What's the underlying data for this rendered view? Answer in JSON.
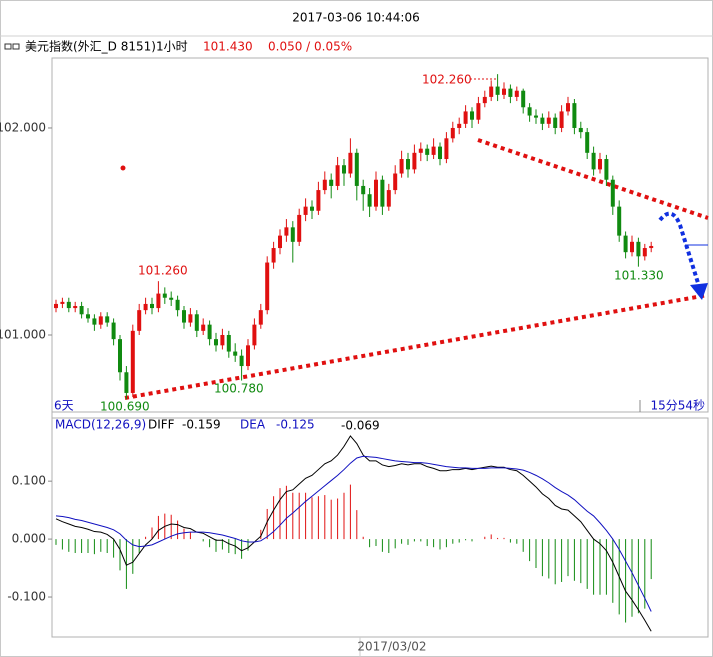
{
  "header": {
    "title": "2017-03-06 10:44:06",
    "instrument": "美元指数(外汇_D 8151)1小时",
    "last": "101.430",
    "change": "0.050 / 0.05%"
  },
  "chart_data": [
    {
      "type": "candlestick",
      "up_color": "#e01010",
      "down_color": "#108a10",
      "ylim": [
        100.628,
        102.338
      ],
      "yticks": [
        {
          "value": 101,
          "label": "101.000"
        },
        {
          "value": 102,
          "label": "102.000"
        }
      ],
      "price_labels": [
        "102.260",
        "101.260",
        "100.780",
        "100.690",
        "101.330"
      ],
      "left_note": "6天",
      "right_note": "15分54秒",
      "date_label": "2017/03/02",
      "ohlc": [
        [
          101.13,
          101.17,
          101.11,
          101.15
        ],
        [
          101.15,
          101.18,
          101.13,
          101.16
        ],
        [
          101.16,
          101.18,
          101.11,
          101.13
        ],
        [
          101.13,
          101.16,
          101.11,
          101.14
        ],
        [
          101.14,
          101.16,
          101.08,
          101.1
        ],
        [
          101.1,
          101.13,
          101.06,
          101.08
        ],
        [
          101.08,
          101.1,
          101.02,
          101.05
        ],
        [
          101.05,
          101.11,
          101.03,
          101.09
        ],
        [
          101.09,
          101.11,
          101.04,
          101.06
        ],
        [
          101.06,
          101.08,
          100.95,
          100.98
        ],
        [
          100.98,
          101.0,
          100.78,
          100.82
        ],
        [
          100.82,
          100.85,
          100.69,
          100.72
        ],
        [
          100.72,
          101.05,
          100.7,
          101.02
        ],
        [
          101.02,
          101.15,
          101.0,
          101.12
        ],
        [
          101.12,
          101.18,
          101.1,
          101.15
        ],
        [
          101.15,
          101.18,
          101.1,
          101.13
        ],
        [
          101.13,
          101.26,
          101.11,
          101.2
        ],
        [
          101.2,
          101.23,
          101.15,
          101.18
        ],
        [
          101.18,
          101.21,
          101.14,
          101.17
        ],
        [
          101.17,
          101.19,
          101.09,
          101.12
        ],
        [
          101.12,
          101.14,
          101.03,
          101.06
        ],
        [
          101.06,
          101.13,
          101.04,
          101.1
        ],
        [
          101.1,
          101.12,
          100.99,
          101.02
        ],
        [
          101.02,
          101.08,
          101.0,
          101.05
        ],
        [
          101.05,
          101.07,
          100.95,
          100.98
        ],
        [
          100.98,
          101.01,
          100.92,
          100.95
        ],
        [
          100.95,
          101.03,
          100.93,
          101.0
        ],
        [
          101.0,
          101.02,
          100.89,
          100.92
        ],
        [
          100.92,
          100.96,
          100.87,
          100.9
        ],
        [
          100.9,
          100.93,
          100.78,
          100.85
        ],
        [
          100.85,
          100.98,
          100.83,
          100.95
        ],
        [
          100.95,
          101.08,
          100.93,
          101.05
        ],
        [
          101.05,
          101.15,
          101.03,
          101.12
        ],
        [
          101.12,
          101.38,
          101.1,
          101.35
        ],
        [
          101.35,
          101.45,
          101.32,
          101.42
        ],
        [
          101.42,
          101.51,
          101.39,
          101.48
        ],
        [
          101.48,
          101.56,
          101.45,
          101.52
        ],
        [
          101.52,
          101.55,
          101.35,
          101.45
        ],
        [
          101.45,
          101.61,
          101.43,
          101.58
        ],
        [
          101.58,
          101.66,
          101.55,
          101.62
        ],
        [
          101.62,
          101.65,
          101.56,
          101.6
        ],
        [
          101.6,
          101.74,
          101.58,
          101.7
        ],
        [
          101.7,
          101.79,
          101.68,
          101.75
        ],
        [
          101.75,
          101.78,
          101.66,
          101.72
        ],
        [
          101.72,
          101.86,
          101.7,
          101.82
        ],
        [
          101.82,
          101.85,
          101.72,
          101.78
        ],
        [
          101.78,
          101.95,
          101.76,
          101.88
        ],
        [
          101.88,
          101.9,
          101.65,
          101.72
        ],
        [
          101.72,
          101.75,
          101.6,
          101.68
        ],
        [
          101.68,
          101.71,
          101.57,
          101.62
        ],
        [
          101.62,
          101.79,
          101.6,
          101.75
        ],
        [
          101.75,
          101.77,
          101.58,
          101.62
        ],
        [
          101.62,
          101.73,
          101.6,
          101.7
        ],
        [
          101.7,
          101.82,
          101.68,
          101.78
        ],
        [
          101.78,
          101.89,
          101.76,
          101.85
        ],
        [
          101.85,
          101.88,
          101.76,
          101.8
        ],
        [
          101.8,
          101.92,
          101.78,
          101.88
        ],
        [
          101.88,
          101.93,
          101.84,
          101.9
        ],
        [
          101.9,
          101.92,
          101.84,
          101.87
        ],
        [
          101.87,
          101.95,
          101.85,
          101.91
        ],
        [
          101.91,
          101.93,
          101.82,
          101.85
        ],
        [
          101.85,
          101.98,
          101.83,
          101.95
        ],
        [
          101.95,
          102.03,
          101.93,
          102.0
        ],
        [
          102.0,
          102.05,
          101.97,
          102.02
        ],
        [
          102.02,
          102.11,
          102.0,
          102.08
        ],
        [
          102.08,
          102.1,
          102.0,
          102.04
        ],
        [
          102.04,
          102.15,
          102.02,
          102.12
        ],
        [
          102.12,
          102.18,
          102.1,
          102.15
        ],
        [
          102.15,
          102.23,
          102.13,
          102.2
        ],
        [
          102.2,
          102.26,
          102.13,
          102.16
        ],
        [
          102.16,
          102.22,
          102.14,
          102.19
        ],
        [
          102.19,
          102.21,
          102.12,
          102.15
        ],
        [
          102.15,
          102.2,
          102.13,
          102.18
        ],
        [
          102.18,
          102.19,
          102.07,
          102.1
        ],
        [
          102.1,
          102.12,
          102.03,
          102.06
        ],
        [
          102.06,
          102.09,
          102.02,
          102.05
        ],
        [
          102.05,
          102.07,
          101.99,
          102.02
        ],
        [
          102.02,
          102.08,
          102.0,
          102.05
        ],
        [
          102.05,
          102.07,
          101.97,
          102.0
        ],
        [
          102.0,
          102.11,
          101.98,
          102.08
        ],
        [
          102.08,
          102.15,
          102.06,
          102.12
        ],
        [
          102.12,
          102.14,
          101.97,
          102.0
        ],
        [
          102.0,
          102.03,
          101.95,
          101.98
        ],
        [
          101.98,
          102.0,
          101.85,
          101.88
        ],
        [
          101.88,
          101.91,
          101.77,
          101.8
        ],
        [
          101.8,
          101.88,
          101.78,
          101.85
        ],
        [
          101.85,
          101.87,
          101.72,
          101.75
        ],
        [
          101.75,
          101.77,
          101.58,
          101.62
        ],
        [
          101.62,
          101.65,
          101.45,
          101.48
        ],
        [
          101.48,
          101.5,
          101.37,
          101.4
        ],
        [
          101.4,
          101.48,
          101.38,
          101.45
        ],
        [
          101.45,
          101.47,
          101.33,
          101.38
        ],
        [
          101.38,
          101.44,
          101.36,
          101.42
        ],
        [
          101.42,
          101.45,
          101.4,
          101.43
        ]
      ]
    },
    {
      "type": "macd",
      "title": "MACD(12,26,9)",
      "macd_label": "-0.069",
      "ylim": [
        -0.169,
        0.209
      ],
      "yticks": [
        {
          "value": 0.1,
          "label": "0.100"
        },
        {
          "value": 0,
          "label": "0.000"
        },
        {
          "value": -0.1,
          "label": "-0.100"
        }
      ],
      "up_color": "#e01010",
      "down_color": "#108a10",
      "series": [
        {
          "name": "DIFF",
          "color": "#000000",
          "value_label": "-0.159",
          "values": [
            0.035,
            0.03,
            0.026,
            0.022,
            0.02,
            0.017,
            0.013,
            0.012,
            0.008,
            0.0,
            -0.018,
            -0.045,
            -0.04,
            -0.025,
            -0.01,
            0.0,
            0.015,
            0.022,
            0.026,
            0.025,
            0.02,
            0.018,
            0.012,
            0.01,
            0.004,
            -0.002,
            -0.002,
            -0.008,
            -0.012,
            -0.02,
            -0.015,
            -0.005,
            0.005,
            0.03,
            0.05,
            0.068,
            0.082,
            0.085,
            0.095,
            0.105,
            0.11,
            0.12,
            0.13,
            0.135,
            0.145,
            0.16,
            0.178,
            0.165,
            0.145,
            0.135,
            0.135,
            0.128,
            0.125,
            0.127,
            0.13,
            0.128,
            0.13,
            0.13,
            0.125,
            0.122,
            0.118,
            0.118,
            0.12,
            0.12,
            0.122,
            0.12,
            0.122,
            0.124,
            0.126,
            0.124,
            0.124,
            0.12,
            0.118,
            0.11,
            0.1,
            0.09,
            0.078,
            0.07,
            0.058,
            0.052,
            0.05,
            0.04,
            0.03,
            0.015,
            0.0,
            -0.008,
            -0.02,
            -0.04,
            -0.065,
            -0.09,
            -0.105,
            -0.122,
            -0.14,
            -0.159
          ]
        },
        {
          "name": "DEA",
          "color": "#1010c0",
          "value_label": "-0.125",
          "values": [
            0.04,
            0.039,
            0.037,
            0.034,
            0.032,
            0.029,
            0.026,
            0.023,
            0.02,
            0.016,
            0.009,
            -0.002,
            -0.01,
            -0.013,
            -0.012,
            -0.01,
            -0.005,
            0.0,
            0.005,
            0.009,
            0.011,
            0.012,
            0.012,
            0.012,
            0.011,
            0.009,
            0.007,
            0.004,
            0.001,
            -0.003,
            -0.005,
            -0.005,
            -0.003,
            0.004,
            0.013,
            0.024,
            0.036,
            0.045,
            0.055,
            0.065,
            0.074,
            0.083,
            0.092,
            0.101,
            0.11,
            0.12,
            0.131,
            0.14,
            0.143,
            0.142,
            0.141,
            0.139,
            0.137,
            0.135,
            0.134,
            0.133,
            0.132,
            0.132,
            0.131,
            0.129,
            0.127,
            0.125,
            0.124,
            0.123,
            0.123,
            0.122,
            0.122,
            0.122,
            0.123,
            0.123,
            0.123,
            0.122,
            0.121,
            0.119,
            0.115,
            0.11,
            0.104,
            0.097,
            0.089,
            0.082,
            0.076,
            0.068,
            0.058,
            0.048,
            0.04,
            0.028,
            0.015,
            0.0,
            -0.018,
            -0.038,
            -0.058,
            -0.08,
            -0.102,
            -0.125
          ]
        }
      ],
      "histogram": [
        -0.01,
        -0.018,
        -0.022,
        -0.024,
        -0.024,
        -0.024,
        -0.026,
        -0.022,
        -0.024,
        -0.032,
        -0.054,
        -0.086,
        -0.06,
        -0.024,
        0.004,
        0.02,
        0.04,
        0.044,
        0.042,
        0.032,
        0.018,
        0.012,
        0.0,
        -0.004,
        -0.014,
        -0.022,
        -0.018,
        -0.024,
        -0.026,
        -0.034,
        -0.02,
        0.0,
        0.016,
        0.052,
        0.074,
        0.088,
        0.092,
        0.08,
        0.08,
        0.08,
        0.072,
        0.074,
        0.076,
        0.068,
        0.07,
        0.08,
        0.094,
        0.05,
        0.004,
        -0.014,
        -0.012,
        -0.022,
        -0.024,
        -0.016,
        -0.008,
        -0.01,
        -0.004,
        -0.004,
        -0.012,
        -0.014,
        -0.018,
        -0.014,
        -0.008,
        -0.006,
        -0.002,
        -0.004,
        0.0,
        0.004,
        0.008,
        0.002,
        0.002,
        -0.006,
        -0.008,
        -0.022,
        -0.038,
        -0.05,
        -0.064,
        -0.068,
        -0.078,
        -0.074,
        -0.064,
        -0.072,
        -0.076,
        -0.086,
        -0.096,
        -0.096,
        -0.096,
        -0.11,
        -0.13,
        -0.144,
        -0.134,
        -0.128,
        -0.12,
        -0.069
      ]
    }
  ]
}
